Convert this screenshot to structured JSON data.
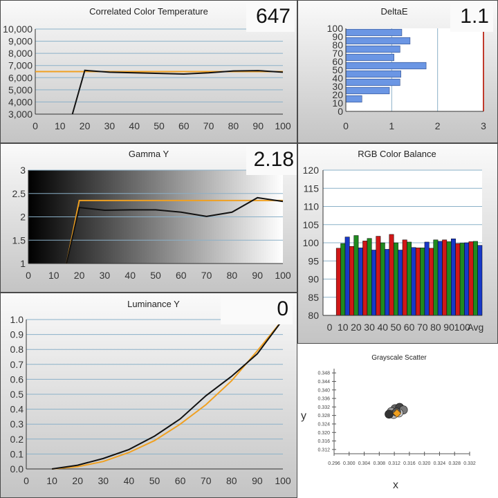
{
  "cct": {
    "title": "Correlated Color Temperature",
    "value_display": "647",
    "chart_data": {
      "type": "line",
      "xlabel": "",
      "ylabel": "",
      "xlim": [
        0,
        100
      ],
      "ylim": [
        3000,
        10000
      ],
      "x_ticks": [
        "0",
        "10",
        "20",
        "30",
        "40",
        "50",
        "60",
        "70",
        "80",
        "90",
        "100"
      ],
      "y_ticks": [
        "3,000",
        "4,000",
        "5,000",
        "6,000",
        "7,000",
        "8,000",
        "9,000",
        "10,000"
      ],
      "series": [
        {
          "color": "#f0a020",
          "x": [
            0,
            100
          ],
          "y": [
            6500,
            6500
          ]
        },
        {
          "color": "#111111",
          "x": [
            15,
            20,
            30,
            40,
            50,
            60,
            70,
            80,
            90,
            100
          ],
          "y": [
            3000,
            6600,
            6450,
            6400,
            6350,
            6300,
            6400,
            6550,
            6580,
            6450
          ]
        }
      ]
    }
  },
  "deltae": {
    "title": "DeltaE",
    "value_display": "1.1",
    "chart_data": {
      "type": "bar",
      "orientation": "horizontal",
      "categories": [
        "0",
        "10",
        "20",
        "30",
        "40",
        "50",
        "60",
        "70",
        "80",
        "90",
        "100"
      ],
      "values": [
        0,
        0.35,
        0.95,
        1.18,
        1.2,
        1.75,
        1.05,
        1.18,
        1.4,
        1.22,
        null
      ],
      "xlim": [
        0,
        3
      ],
      "x_ticks": [
        "0",
        "1",
        "2",
        "3"
      ],
      "bar_color": "#6b96e4",
      "threshold": 3,
      "threshold_color": "#c0392b"
    }
  },
  "gamma": {
    "title": "Gamma Y",
    "value_display": "2.18",
    "chart_data": {
      "type": "line",
      "xlim": [
        0,
        100
      ],
      "ylim": [
        1,
        3
      ],
      "x_ticks": [
        "0",
        "10",
        "20",
        "30",
        "40",
        "50",
        "60",
        "70",
        "80",
        "90",
        "100"
      ],
      "y_ticks": [
        "1",
        "1.5",
        "2",
        "2.5",
        "3"
      ],
      "series": [
        {
          "color": "#f0a020",
          "x": [
            15,
            20,
            100
          ],
          "y": [
            1,
            2.35,
            2.35
          ]
        },
        {
          "color": "#111111",
          "x": [
            15,
            20,
            30,
            40,
            50,
            60,
            70,
            80,
            90,
            100
          ],
          "y": [
            1,
            2.2,
            2.14,
            2.15,
            2.15,
            2.1,
            2.01,
            2.1,
            2.41,
            2.33
          ]
        }
      ]
    }
  },
  "rgb": {
    "title": "RGB Color Balance",
    "chart_data": {
      "type": "bar",
      "categories": [
        "0",
        "10",
        "20",
        "30",
        "40",
        "50",
        "60",
        "70",
        "80",
        "90",
        "100",
        "Avg"
      ],
      "ylim": [
        80,
        120
      ],
      "y_ticks": [
        "80",
        "85",
        "90",
        "95",
        "100",
        "105",
        "110",
        "115",
        "120"
      ],
      "series": [
        {
          "color": "#d01818",
          "values": [
            null,
            98.5,
            99,
            100.5,
            101.8,
            102.3,
            100.8,
            98.6,
            98.5,
            100.8,
            99.8,
            100.3
          ]
        },
        {
          "color": "#1f8a1f",
          "values": [
            null,
            99.8,
            102,
            101.2,
            100,
            100,
            100.2,
            98.6,
            100.8,
            100.3,
            99.9,
            100.4
          ]
        },
        {
          "color": "#1838c8",
          "values": [
            null,
            101.6,
            98.6,
            98,
            98.2,
            98,
            98.7,
            100.2,
            100.4,
            101.1,
            100,
            99.3
          ]
        }
      ]
    }
  },
  "luminance": {
    "title": "Luminance Y",
    "value_display": "0",
    "chart_data": {
      "type": "line",
      "xlim": [
        0,
        100
      ],
      "ylim": [
        0,
        1
      ],
      "x_ticks": [
        "0",
        "10",
        "20",
        "30",
        "40",
        "50",
        "60",
        "70",
        "80",
        "90",
        "100"
      ],
      "y_ticks": [
        "0.0",
        "0.1",
        "0.2",
        "0.3",
        "0.4",
        "0.5",
        "0.6",
        "0.7",
        "0.8",
        "0.9",
        "1.0"
      ],
      "series": [
        {
          "color": "#f0a020",
          "x": [
            10,
            20,
            30,
            40,
            50,
            60,
            70,
            80,
            90,
            100
          ],
          "y": [
            0,
            0.015,
            0.05,
            0.11,
            0.19,
            0.3,
            0.43,
            0.59,
            0.79,
            1
          ]
        },
        {
          "color": "#111111",
          "x": [
            10,
            20,
            30,
            40,
            50,
            60,
            70,
            80,
            90,
            100
          ],
          "y": [
            0,
            0.025,
            0.07,
            0.13,
            0.22,
            0.335,
            0.49,
            0.62,
            0.77,
            1
          ]
        }
      ]
    }
  },
  "scatter": {
    "title": "Grayscale Scatter",
    "chart_data": {
      "type": "scatter",
      "xlabel": "x",
      "ylabel": "y",
      "xlim": [
        0.296,
        0.332
      ],
      "ylim": [
        0.31,
        0.35
      ],
      "x_ticks": [
        "0.296",
        "0.300",
        "0.304",
        "0.308",
        "0.312",
        "0.316",
        "0.320",
        "0.324",
        "0.328",
        "0.332"
      ],
      "y_ticks": [
        "0.312",
        "0.316",
        "0.320",
        "0.324",
        "0.328",
        "0.332",
        "0.336",
        "0.340",
        "0.344",
        "0.348"
      ],
      "points": [
        {
          "x": 0.3122,
          "y": 0.3312,
          "color": "#666666"
        },
        {
          "x": 0.3134,
          "y": 0.3318,
          "color": "#444444"
        },
        {
          "x": 0.3144,
          "y": 0.3306,
          "color": "#777777"
        },
        {
          "x": 0.3112,
          "y": 0.3298,
          "color": "#999999"
        },
        {
          "x": 0.3118,
          "y": 0.3285,
          "color": "#bbbbbb"
        },
        {
          "x": 0.3106,
          "y": 0.3286,
          "color": "#333333"
        },
        {
          "x": 0.3132,
          "y": 0.3292,
          "color": "#cccccc"
        },
        {
          "x": 0.3126,
          "y": 0.3296,
          "color": "#555555"
        }
      ],
      "target": {
        "x": 0.3127,
        "y": 0.329,
        "color": "#f0a020"
      }
    }
  }
}
